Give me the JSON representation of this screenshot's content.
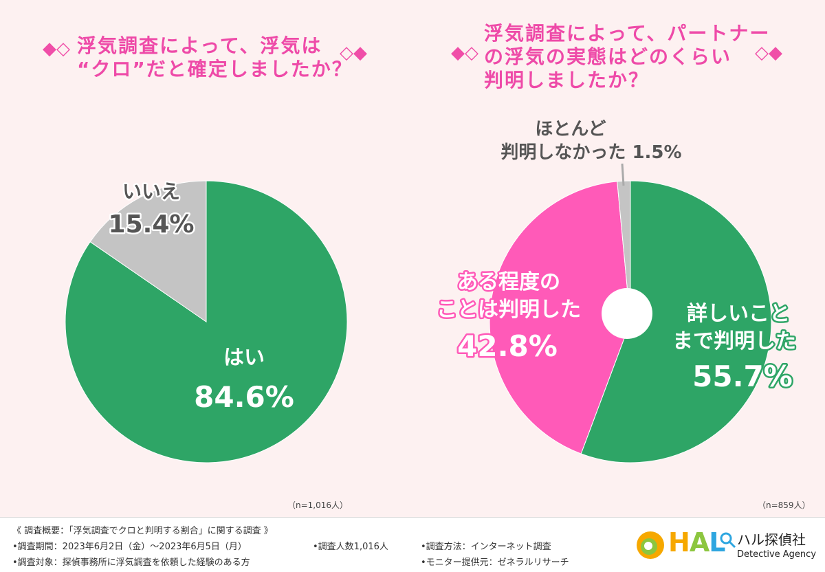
{
  "left": {
    "title_lines": [
      "浮気調査によって、浮気は",
      "“クロ”だと確定しましたか？"
    ],
    "note": "（n=1,016人）"
  },
  "right": {
    "title_lines": [
      "浮気調査によって、パートナー",
      "の浮気の実態はどのくらい",
      "判明しましたか？"
    ],
    "note": "（n=859人）"
  },
  "chart_data": [
    {
      "type": "pie",
      "slices": [
        {
          "label": "はい",
          "value": 84.6,
          "value_text": "84.6%",
          "color": "#2ea566"
        },
        {
          "label": "いいえ",
          "value": 15.4,
          "value_text": "15.4%",
          "color": "#c4c4c4"
        }
      ]
    },
    {
      "type": "pie",
      "slices": [
        {
          "label": "詳しいことまで判明した",
          "label_lines": [
            "詳しいこと",
            "まで判明した"
          ],
          "value": 55.7,
          "value_text": "55.7%",
          "color": "#2ea566"
        },
        {
          "label": "ある程度のことは判明した",
          "label_lines": [
            "ある程度の",
            "ことは判明した"
          ],
          "value": 42.8,
          "value_text": "42.8%",
          "color": "#ff5ab8"
        },
        {
          "label": "ほとんど判明しなかった",
          "label_lines": [
            "ほとんど",
            "判明しなかった"
          ],
          "value": 1.5,
          "value_text": "1.5%",
          "color": "#c4c4c4"
        }
      ]
    }
  ],
  "footer": {
    "summary": "《 調査概要：「浮気調査でクロと判明する割合」に関する調査 》",
    "period": "•調査期間：2023年6月2日（金）～2023年6月5日（月）",
    "count": "•調査人数1,016人",
    "method": "•調査方法：インターネット調査",
    "target": "•調査対象：探偵事務所に浮気調査を依頼した経験のある方",
    "provider": "•モニター提供元：ゼネラルリサーチ"
  },
  "logo": {
    "letters": [
      "H",
      "A",
      "L"
    ],
    "letter_colors": [
      "#f6a800",
      "#8cc63f",
      "#2ea6e0"
    ],
    "name": "ハル探偵社",
    "subtitle": "Detective Agency"
  },
  "decor": {
    "diamonds_left": "◆◇",
    "diamonds_right": "◇◆"
  }
}
